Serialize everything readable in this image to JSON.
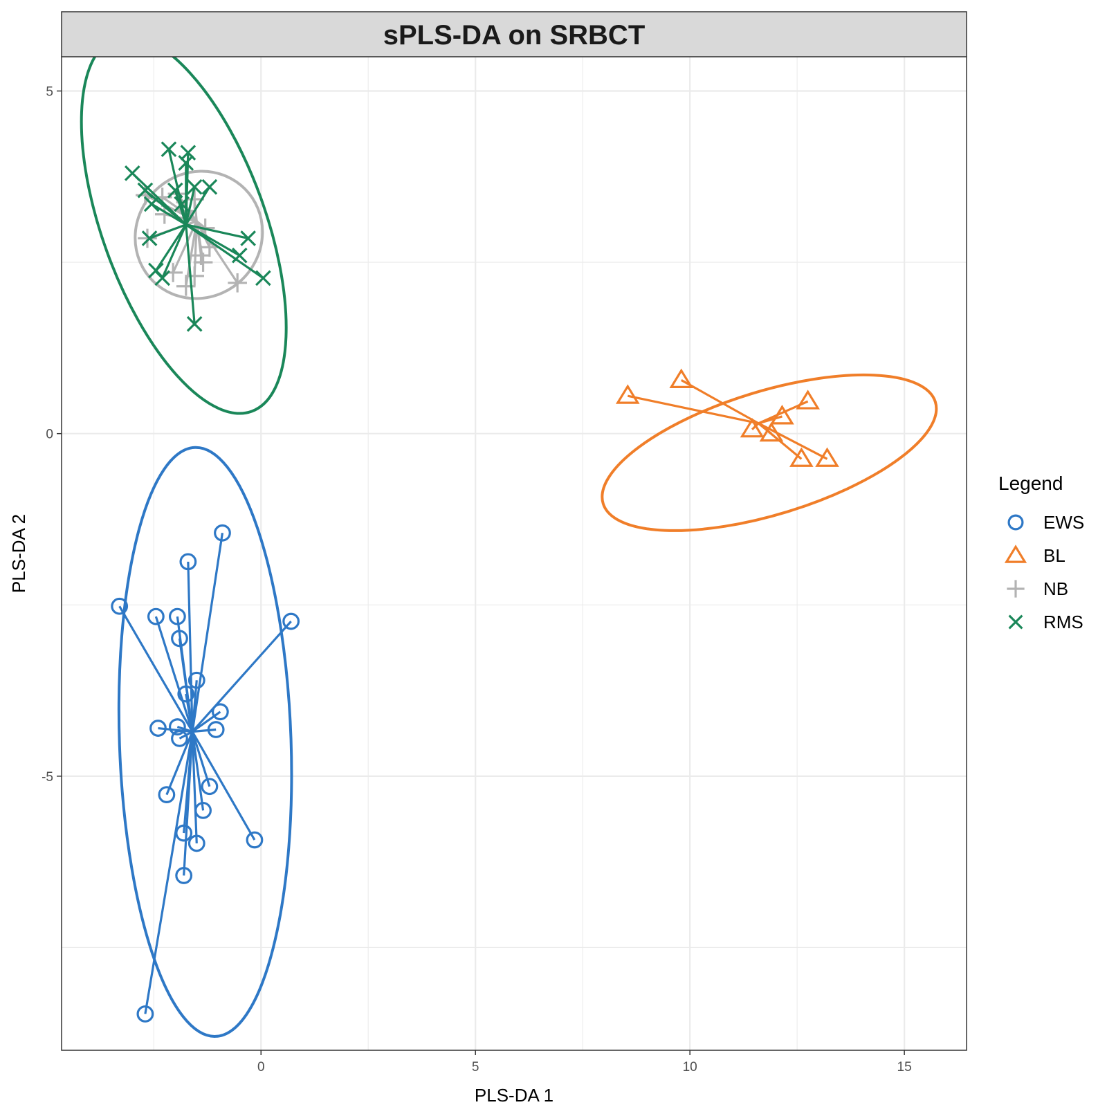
{
  "chart_data": {
    "type": "scatter",
    "title": "sPLS-DA on SRBCT",
    "xlabel": "PLS-DA 1",
    "ylabel": "PLS-DA 2",
    "xlim": [
      -4.65,
      16.45
    ],
    "ylim": [
      -9.0,
      5.5
    ],
    "x_ticks": [
      0,
      5,
      10,
      15
    ],
    "x_tick_labels": [
      "0",
      "5",
      "10",
      "15"
    ],
    "y_ticks": [
      -5,
      0,
      5
    ],
    "y_tick_labels": [
      "-5",
      "0",
      "5"
    ],
    "grid": true,
    "legend": {
      "title": "Legend",
      "position": "right"
    },
    "series": [
      {
        "name": "EWS",
        "color": "#2E78C6",
        "marker": "circle",
        "centroid": [
          -1.6,
          -4.35
        ],
        "ellipse": {
          "cx": -1.3,
          "cy": -4.5,
          "rx": 2.0,
          "ry": 4.3,
          "angle": -2
        },
        "points": [
          [
            -0.9,
            -1.45
          ],
          [
            -1.7,
            -1.87
          ],
          [
            -3.3,
            -2.52
          ],
          [
            -2.45,
            -2.67
          ],
          [
            -1.95,
            -2.67
          ],
          [
            -1.9,
            -2.99
          ],
          [
            -1.5,
            -3.6
          ],
          [
            0.7,
            -2.74
          ],
          [
            -1.75,
            -3.8
          ],
          [
            -0.95,
            -4.06
          ],
          [
            -2.4,
            -4.3
          ],
          [
            -1.95,
            -4.28
          ],
          [
            -1.05,
            -4.32
          ],
          [
            -1.9,
            -4.45
          ],
          [
            -2.2,
            -5.27
          ],
          [
            -1.2,
            -5.15
          ],
          [
            -1.35,
            -5.5
          ],
          [
            -1.8,
            -5.83
          ],
          [
            -1.5,
            -5.98
          ],
          [
            -0.15,
            -5.93
          ],
          [
            -1.8,
            -6.45
          ],
          [
            -2.7,
            -8.47
          ]
        ]
      },
      {
        "name": "BL",
        "color": "#F07E29",
        "marker": "triangle",
        "centroid": [
          11.6,
          0.15
        ],
        "ellipse": {
          "cx": 11.85,
          "cy": -0.28,
          "rx": 4.05,
          "ry": 0.9,
          "angle": -17
        },
        "points": [
          [
            8.55,
            0.55
          ],
          [
            9.8,
            0.78
          ],
          [
            12.75,
            0.47
          ],
          [
            12.15,
            0.25
          ],
          [
            11.45,
            0.06
          ],
          [
            11.9,
            0.0
          ],
          [
            12.6,
            -0.37
          ],
          [
            13.2,
            -0.37
          ]
        ]
      },
      {
        "name": "NB",
        "color": "#B3B3B3",
        "marker": "plus",
        "centroid": [
          -1.5,
          3.1
        ],
        "ellipse": {
          "cx": -1.45,
          "cy": 2.9,
          "rx": 1.45,
          "ry": 0.95,
          "angle": 45
        },
        "points": [
          [
            -2.7,
            3.48
          ],
          [
            -2.3,
            3.45
          ],
          [
            -1.95,
            3.5
          ],
          [
            -1.55,
            3.42
          ],
          [
            -1.75,
            3.25
          ],
          [
            -1.3,
            3.0
          ],
          [
            -2.65,
            2.85
          ],
          [
            -1.2,
            2.72
          ],
          [
            -1.4,
            2.6
          ],
          [
            -1.35,
            2.5
          ],
          [
            -2.05,
            2.35
          ],
          [
            -0.55,
            2.2
          ],
          [
            -1.75,
            2.15
          ],
          [
            -1.55,
            2.3
          ],
          [
            -2.25,
            3.2
          ]
        ]
      },
      {
        "name": "RMS",
        "color": "#1A8759",
        "marker": "x",
        "centroid": [
          -1.75,
          3.05
        ],
        "ellipse": {
          "cx": -1.8,
          "cy": 3.05,
          "rx": 1.9,
          "ry": 2.9,
          "angle": -20
        },
        "points": [
          [
            -2.15,
            4.15
          ],
          [
            -1.7,
            4.1
          ],
          [
            -1.75,
            3.95
          ],
          [
            -3.0,
            3.8
          ],
          [
            -1.55,
            3.6
          ],
          [
            -1.2,
            3.6
          ],
          [
            -2.7,
            3.55
          ],
          [
            -2.0,
            3.55
          ],
          [
            -2.55,
            3.35
          ],
          [
            -1.85,
            3.35
          ],
          [
            -0.3,
            2.85
          ],
          [
            -2.6,
            2.85
          ],
          [
            -0.5,
            2.6
          ],
          [
            -2.45,
            2.38
          ],
          [
            -2.3,
            2.27
          ],
          [
            0.05,
            2.27
          ],
          [
            -1.55,
            1.6
          ]
        ]
      }
    ]
  }
}
